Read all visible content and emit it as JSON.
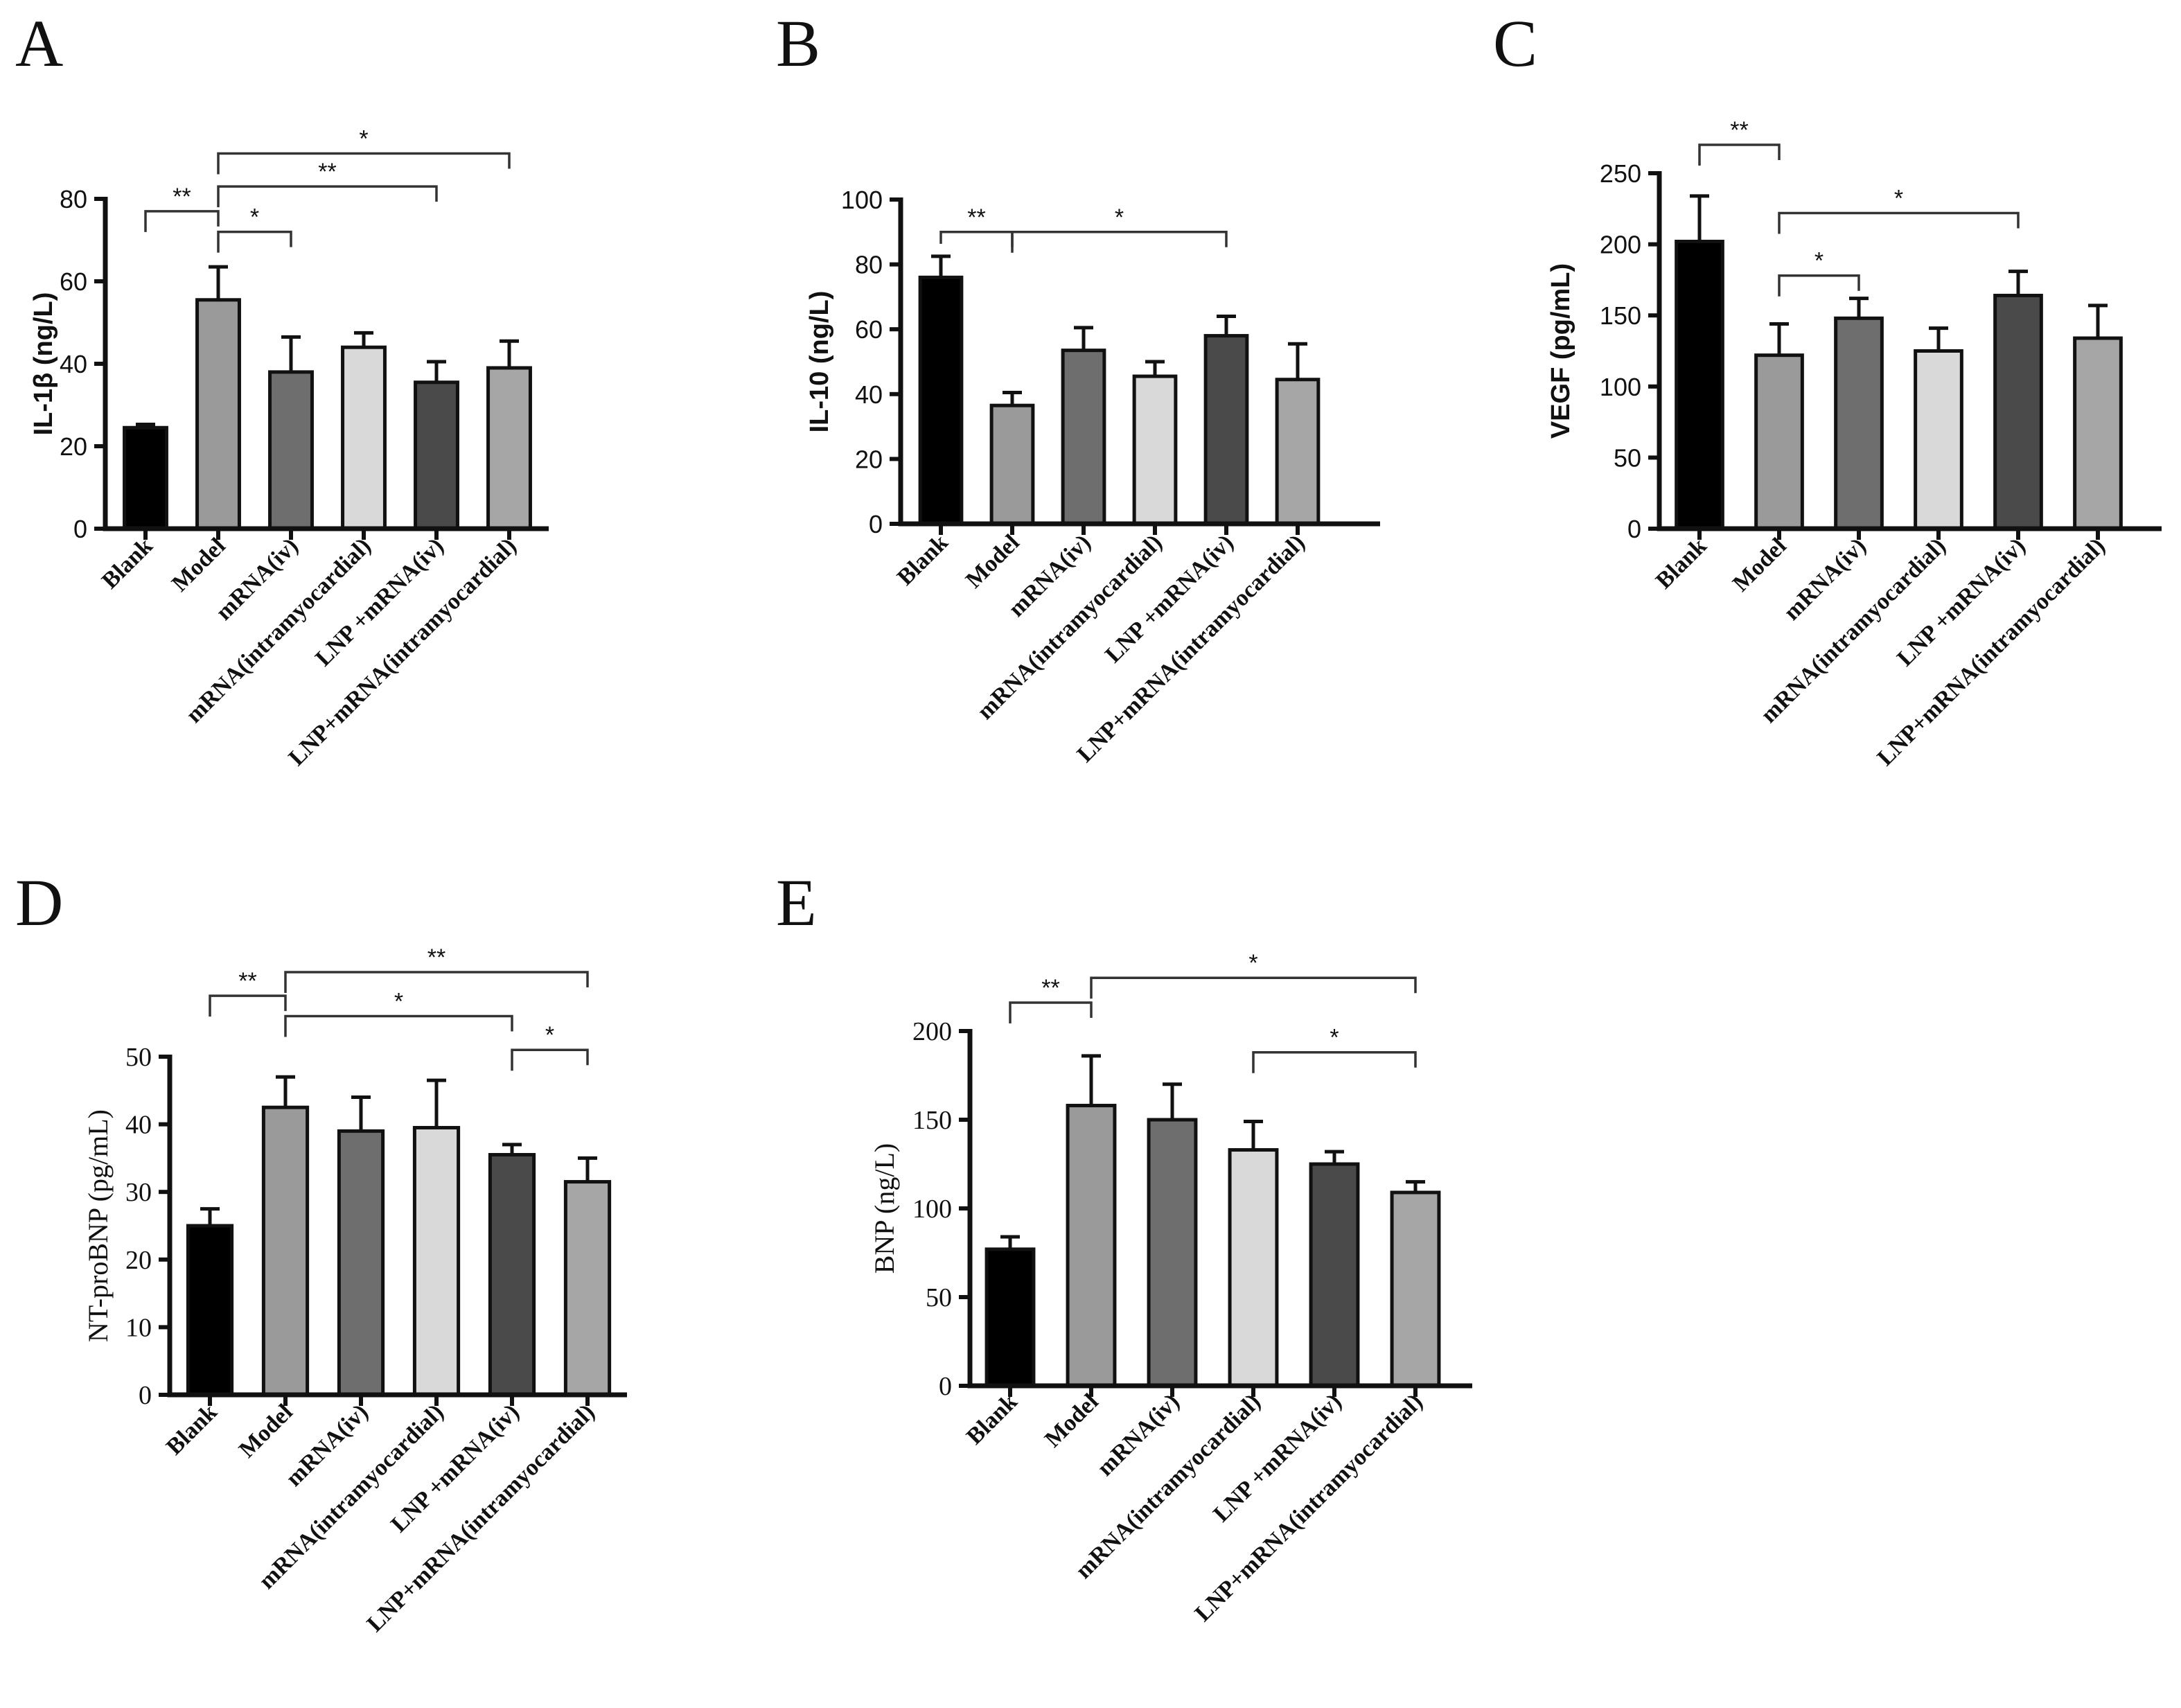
{
  "figure_title": "",
  "chart_data": [
    {
      "panel": "A",
      "type": "bar",
      "ylabel": "IL-1β (ng/L)",
      "ylim": [
        0,
        80
      ],
      "yticks": [
        "0",
        "20",
        "40",
        "60",
        "80"
      ],
      "categories": [
        "Blank",
        "Model",
        "mRNA(iv)",
        "mRNA(intramyocardial)",
        "LNP +mRNA(iv)",
        "LNP+mRNA(intramyocardial)"
      ],
      "values": [
        24.5,
        55.5,
        38,
        44,
        35.5,
        39
      ],
      "errors": [
        0.8,
        8,
        8.5,
        3.5,
        5,
        6.5
      ],
      "colors": [
        "#000000",
        "#9a9a9a",
        "#6e6e6e",
        "#d9d9d9",
        "#4a4a4a",
        "#a6a6a6"
      ],
      "significance": [
        {
          "from": 0,
          "to": 1,
          "label": "**",
          "y": 77
        },
        {
          "from": 1,
          "to": 2,
          "label": "*",
          "y": 72
        },
        {
          "from": 1,
          "to": 4,
          "label": "**",
          "y": 83
        },
        {
          "from": 1,
          "to": 5,
          "label": "*",
          "y": 91
        }
      ]
    },
    {
      "panel": "B",
      "type": "bar",
      "ylabel": "IL-10 (ng/L)",
      "ylim": [
        0,
        100
      ],
      "yticks": [
        "0",
        "20",
        "40",
        "60",
        "80",
        "100"
      ],
      "categories": [
        "Blank",
        "Model",
        "mRNA(iv)",
        "mRNA(intramyocardial)",
        "LNP +mRNA(iv)",
        "LNP+mRNA(intramyocardial)"
      ],
      "values": [
        76,
        36.5,
        53.5,
        45.5,
        58,
        44.5
      ],
      "errors": [
        6.5,
        4,
        7,
        4.5,
        6,
        11
      ],
      "colors": [
        "#000000",
        "#9a9a9a",
        "#6e6e6e",
        "#d9d9d9",
        "#4a4a4a",
        "#a6a6a6"
      ],
      "significance": [
        {
          "from": 0,
          "to": 1,
          "label": "**",
          "y": 90
        },
        {
          "from": 1,
          "to": 4,
          "label": "*",
          "y": 90
        }
      ]
    },
    {
      "panel": "C",
      "type": "bar",
      "ylabel": "VEGF (pg/mL)",
      "ylim": [
        0,
        250
      ],
      "yticks": [
        "0",
        "50",
        "100",
        "150",
        "200",
        "250"
      ],
      "categories": [
        "Blank",
        "Model",
        "mRNA(iv)",
        "mRNA(intramyocardial)",
        "LNP +mRNA(iv)",
        "LNP+mRNA(intramyocardial)"
      ],
      "values": [
        202,
        122,
        148,
        125,
        164,
        134
      ],
      "errors": [
        32,
        22,
        14,
        16,
        17,
        23
      ],
      "colors": [
        "#000000",
        "#9a9a9a",
        "#6e6e6e",
        "#d9d9d9",
        "#4a4a4a",
        "#a6a6a6"
      ],
      "significance": [
        {
          "from": 0,
          "to": 1,
          "label": "**",
          "y": 270
        },
        {
          "from": 1,
          "to": 2,
          "label": "*",
          "y": 178
        },
        {
          "from": 1,
          "to": 4,
          "label": "*",
          "y": 222
        }
      ]
    },
    {
      "panel": "D",
      "type": "bar",
      "ylabel": "NT-proBNP (pg/mL)",
      "ylim": [
        0,
        50
      ],
      "yticks": [
        "0",
        "10",
        "20",
        "30",
        "40",
        "50"
      ],
      "categories": [
        "Blank",
        "Model",
        "mRNA(iv)",
        "mRNA(intramyocardial)",
        "LNP +mRNA(iv)",
        "LNP+mRNA(intramyocardial)"
      ],
      "values": [
        25,
        42.5,
        39,
        39.5,
        35.5,
        31.5
      ],
      "errors": [
        2.5,
        4.5,
        5,
        7,
        1.5,
        3.5
      ],
      "colors": [
        "#000000",
        "#9a9a9a",
        "#6e6e6e",
        "#d9d9d9",
        "#4a4a4a",
        "#a6a6a6"
      ],
      "significance": [
        {
          "from": 0,
          "to": 1,
          "label": "**",
          "y": 59
        },
        {
          "from": 1,
          "to": 4,
          "label": "*",
          "y": 56
        },
        {
          "from": 1,
          "to": 5,
          "label": "**",
          "y": 62.5
        },
        {
          "from": 4,
          "to": 5,
          "label": "*",
          "y": 51
        }
      ]
    },
    {
      "panel": "E",
      "type": "bar",
      "ylabel": "BNP (ng/L)",
      "ylim": [
        0,
        200
      ],
      "yticks": [
        "0",
        "50",
        "100",
        "150",
        "200"
      ],
      "categories": [
        "Blank",
        "Model",
        "mRNA(iv)",
        "mRNA(intramyocardial)",
        "LNP +mRNA(iv)",
        "LNP+mRNA(intramyocardial)"
      ],
      "values": [
        77,
        158,
        150,
        133,
        125,
        109
      ],
      "errors": [
        7,
        28,
        20,
        16,
        7,
        6
      ],
      "colors": [
        "#000000",
        "#9a9a9a",
        "#6e6e6e",
        "#d9d9d9",
        "#4a4a4a",
        "#a6a6a6"
      ],
      "significance": [
        {
          "from": 0,
          "to": 1,
          "label": "**",
          "y": 216
        },
        {
          "from": 1,
          "to": 5,
          "label": "*",
          "y": 230
        },
        {
          "from": 3,
          "to": 5,
          "label": "*",
          "y": 188
        }
      ]
    }
  ]
}
